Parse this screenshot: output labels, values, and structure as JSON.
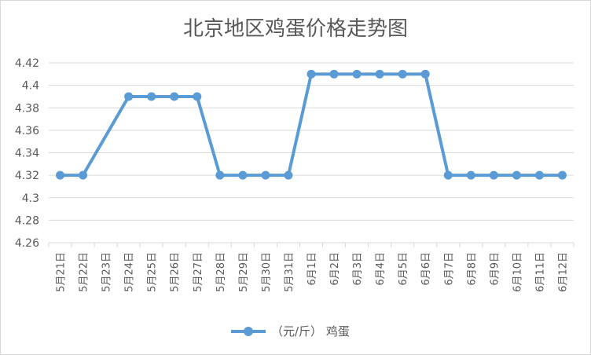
{
  "chart_data": {
    "type": "line",
    "title": "北京地区鸡蛋价格走势图",
    "xlabel": "",
    "ylabel": "",
    "categories": [
      "5月21日",
      "5月22日",
      "5月23日",
      "5月24日",
      "5月25日",
      "5月26日",
      "5月27日",
      "5月28日",
      "5月29日",
      "5月30日",
      "5月31日",
      "6月1日",
      "6月2日",
      "6月3日",
      "6月4日",
      "6月5日",
      "6月6日",
      "6月7日",
      "6月8日",
      "6月9日",
      "6月10日",
      "6月11日",
      "6月12日"
    ],
    "yticks": [
      "4.26",
      "4.28",
      "4.3",
      "4.32",
      "4.34",
      "4.36",
      "4.38",
      "4.4",
      "4.42"
    ],
    "ylim": [
      4.26,
      4.42
    ],
    "grid": true,
    "legend_position": "bottom",
    "series": [
      {
        "name": "（元/斤） 鸡蛋",
        "color": "#5b9bd5",
        "points": [
          {
            "i": 0,
            "value": 4.32
          },
          {
            "i": 1,
            "value": 4.32
          },
          {
            "i": 3,
            "value": 4.39
          },
          {
            "i": 4,
            "value": 4.39
          },
          {
            "i": 5,
            "value": 4.39
          },
          {
            "i": 6,
            "value": 4.39
          },
          {
            "i": 7,
            "value": 4.32
          },
          {
            "i": 8,
            "value": 4.32
          },
          {
            "i": 9,
            "value": 4.32
          },
          {
            "i": 10,
            "value": 4.32
          },
          {
            "i": 11,
            "value": 4.41
          },
          {
            "i": 12,
            "value": 4.41
          },
          {
            "i": 13,
            "value": 4.41
          },
          {
            "i": 14,
            "value": 4.41
          },
          {
            "i": 15,
            "value": 4.41
          },
          {
            "i": 16,
            "value": 4.41
          },
          {
            "i": 17,
            "value": 4.32
          },
          {
            "i": 18,
            "value": 4.32
          },
          {
            "i": 19,
            "value": 4.32
          },
          {
            "i": 20,
            "value": 4.32
          },
          {
            "i": 21,
            "value": 4.32
          },
          {
            "i": 22,
            "value": 4.32
          }
        ]
      }
    ]
  }
}
